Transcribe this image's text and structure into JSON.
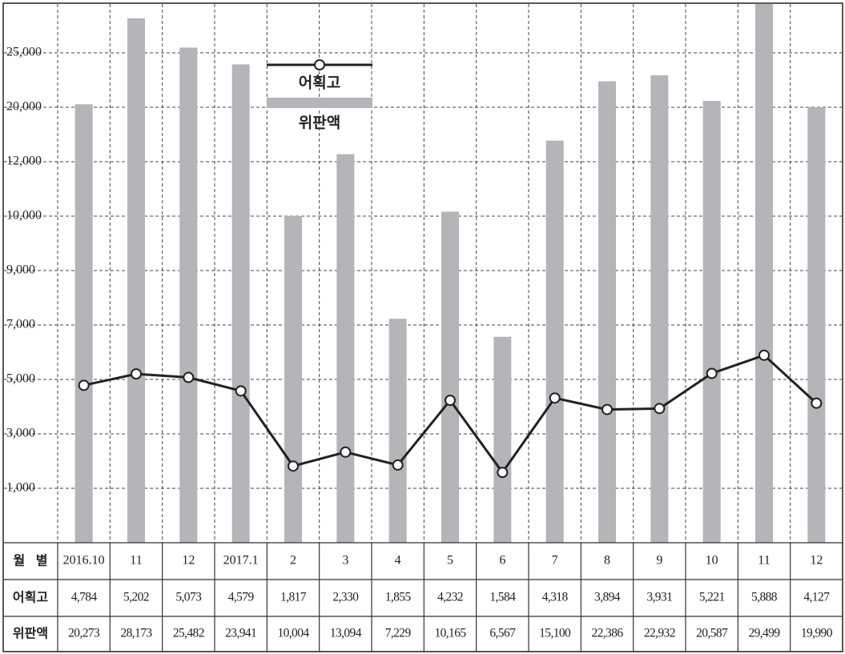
{
  "chart_data": {
    "type": "bar",
    "categories": [
      "2016.10",
      "11",
      "12",
      "2017.1",
      "2",
      "3",
      "4",
      "5",
      "6",
      "7",
      "8",
      "9",
      "10",
      "11",
      "12"
    ],
    "table_header": "월 별",
    "series": [
      {
        "name": "어획고",
        "type": "line",
        "color": "#222222",
        "values": [
          4784,
          5202,
          5073,
          4579,
          1817,
          2330,
          1855,
          4232,
          1584,
          4318,
          3894,
          3931,
          5221,
          5888,
          4127
        ],
        "value_labels": [
          "4,784",
          "5,202",
          "5,073",
          "4,579",
          "1,817",
          "2,330",
          "1,855",
          "4,232",
          "1,584",
          "4,318",
          "3,894",
          "3,931",
          "5,221",
          "5,888",
          "4,127"
        ]
      },
      {
        "name": "위판액",
        "type": "bar",
        "color": "#b4b4b9",
        "values": [
          20273,
          28173,
          25482,
          23941,
          10004,
          13094,
          7229,
          10165,
          6567,
          15100,
          22386,
          22932,
          20587,
          29499,
          19990
        ],
        "value_labels": [
          "20,273",
          "28,173",
          "25,482",
          "23,941",
          "10,004",
          "13,094",
          "7,229",
          "10,165",
          "6,567",
          "15,100",
          "22,386",
          "22,932",
          "20,587",
          "29,499",
          "19,990"
        ]
      }
    ],
    "ylim": [
      0,
      30000
    ],
    "yticks": [
      {
        "value": 1000,
        "label": "1,000"
      },
      {
        "value": 3000,
        "label": "3,000"
      },
      {
        "value": 5000,
        "label": "5,000"
      },
      {
        "value": 7000,
        "label": "7,000"
      },
      {
        "value": 9000,
        "label": "9,000"
      },
      {
        "value": 10000,
        "label": "10,000"
      },
      {
        "value": 12000,
        "label": "12,000"
      },
      {
        "value": 20000,
        "label": "20,000"
      },
      {
        "value": 25000,
        "label": "25,000"
      }
    ],
    "grid": true
  }
}
